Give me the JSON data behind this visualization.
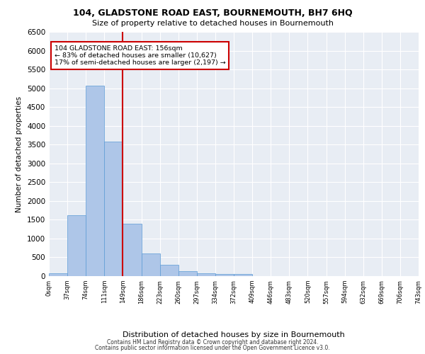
{
  "title1": "104, GLADSTONE ROAD EAST, BOURNEMOUTH, BH7 6HQ",
  "title2": "Size of property relative to detached houses in Bournemouth",
  "xlabel": "Distribution of detached houses by size in Bournemouth",
  "ylabel": "Number of detached properties",
  "bar_values": [
    75,
    1625,
    5075,
    3575,
    1400,
    600,
    300,
    140,
    75,
    55,
    50,
    0,
    0,
    0,
    0,
    0,
    0,
    0,
    0,
    0
  ],
  "x_labels": [
    "0sqm",
    "37sqm",
    "74sqm",
    "111sqm",
    "149sqm",
    "186sqm",
    "223sqm",
    "260sqm",
    "297sqm",
    "334sqm",
    "372sqm",
    "409sqm",
    "446sqm",
    "483sqm",
    "520sqm",
    "557sqm",
    "594sqm",
    "632sqm",
    "669sqm",
    "706sqm",
    "743sqm"
  ],
  "bar_color": "#aec6e8",
  "bar_edgecolor": "#5b9bd5",
  "background_color": "#e8edf4",
  "grid_color": "#ffffff",
  "vline_x": 4,
  "vline_color": "#cc0000",
  "annotation_text": "104 GLADSTONE ROAD EAST: 156sqm\n← 83% of detached houses are smaller (10,627)\n17% of semi-detached houses are larger (2,197) →",
  "annotation_box_color": "#ffffff",
  "annotation_box_edgecolor": "#cc0000",
  "ylim": [
    0,
    6500
  ],
  "yticks": [
    0,
    500,
    1000,
    1500,
    2000,
    2500,
    3000,
    3500,
    4000,
    4500,
    5000,
    5500,
    6000,
    6500
  ],
  "footer1": "Contains HM Land Registry data © Crown copyright and database right 2024.",
  "footer2": "Contains public sector information licensed under the Open Government Licence v3.0.",
  "n_bars": 20,
  "total_bins": 20
}
